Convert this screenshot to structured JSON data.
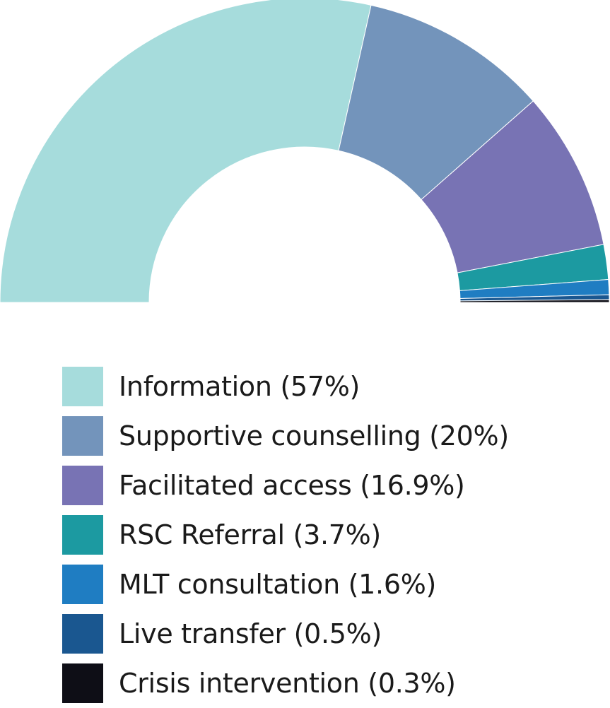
{
  "chart_data": {
    "type": "pie",
    "variant": "half-donut",
    "title": "",
    "legend_placement": "bottom",
    "series": [
      {
        "label": "Information (57%)",
        "value": 57,
        "color": "#a6dcdc"
      },
      {
        "label": "Supportive counselling (20%)",
        "value": 20,
        "color": "#7394bb"
      },
      {
        "label": "Facilitated access (16.9%)",
        "value": 16.9,
        "color": "#7873b4"
      },
      {
        "label": "RSC Referral (3.7%)",
        "value": 3.7,
        "color": "#1c9aa1"
      },
      {
        "label": "MLT consultation (1.6%)",
        "value": 1.6,
        "color": "#1f7dc2"
      },
      {
        "label": "Live transfer (0.5%)",
        "value": 0.5,
        "color": "#1a5790"
      },
      {
        "label": "Crisis intervention (0.3%)",
        "value": 0.3,
        "color": "#0e0e16"
      }
    ]
  }
}
